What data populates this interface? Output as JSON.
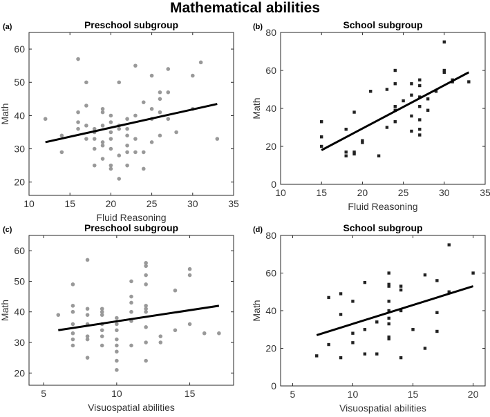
{
  "figure": {
    "title": "Mathematical abilities"
  },
  "chart_data": [
    {
      "type": "scatter",
      "panel_label": "(a)",
      "title": "Preschool subgroup",
      "xlabel": "Fluid Reasoning",
      "ylabel": "Math",
      "xlim": [
        10,
        35
      ],
      "ylim": [
        16,
        65
      ],
      "xticks": [
        10,
        15,
        20,
        25,
        30,
        35
      ],
      "yticks": [
        20,
        30,
        40,
        50,
        60
      ],
      "point_color": "#999999",
      "marker": "circle",
      "points": [
        [
          12,
          39
        ],
        [
          14,
          34
        ],
        [
          14,
          29
        ],
        [
          16,
          57
        ],
        [
          16,
          41
        ],
        [
          16,
          38
        ],
        [
          16,
          36
        ],
        [
          17,
          50
        ],
        [
          17,
          43
        ],
        [
          17,
          37
        ],
        [
          17,
          33
        ],
        [
          18,
          35
        ],
        [
          18,
          33
        ],
        [
          18,
          30
        ],
        [
          18,
          25
        ],
        [
          18,
          36
        ],
        [
          19,
          42
        ],
        [
          19,
          41
        ],
        [
          19,
          37
        ],
        [
          19,
          32
        ],
        [
          19,
          31
        ],
        [
          19,
          27
        ],
        [
          20,
          40
        ],
        [
          20,
          38
        ],
        [
          20,
          35
        ],
        [
          20,
          33
        ],
        [
          20,
          30
        ],
        [
          20,
          25
        ],
        [
          20,
          24
        ],
        [
          21,
          50
        ],
        [
          21,
          37
        ],
        [
          21,
          36
        ],
        [
          21,
          28
        ],
        [
          21,
          21
        ],
        [
          22,
          39
        ],
        [
          22,
          36
        ],
        [
          22,
          34
        ],
        [
          22,
          31
        ],
        [
          22,
          29
        ],
        [
          22,
          25
        ],
        [
          23,
          55
        ],
        [
          23,
          40
        ],
        [
          23,
          33
        ],
        [
          23,
          29
        ],
        [
          24,
          29
        ],
        [
          24,
          24
        ],
        [
          24,
          44
        ],
        [
          25,
          52
        ],
        [
          25,
          42
        ],
        [
          25,
          39
        ],
        [
          25,
          32
        ],
        [
          26,
          47
        ],
        [
          26,
          45
        ],
        [
          26,
          41
        ],
        [
          26,
          34
        ],
        [
          27,
          54
        ],
        [
          27,
          47
        ],
        [
          27,
          39
        ],
        [
          28,
          35
        ],
        [
          30,
          52
        ],
        [
          30,
          42
        ],
        [
          31,
          56
        ],
        [
          33,
          33
        ]
      ],
      "regression": {
        "x": [
          12,
          33
        ],
        "y": [
          32,
          43.5
        ]
      }
    },
    {
      "type": "scatter",
      "panel_label": "(b)",
      "title": "School subgroup",
      "xlabel": "Fluid Reasoning",
      "ylabel": "Math",
      "xlim": [
        10,
        35
      ],
      "ylim": [
        0,
        80
      ],
      "xticks": [
        10,
        15,
        20,
        25,
        30,
        35
      ],
      "yticks": [
        0,
        20,
        40,
        60,
        80
      ],
      "point_color": "#222222",
      "marker": "square",
      "points": [
        [
          15,
          33
        ],
        [
          15,
          25
        ],
        [
          15,
          20
        ],
        [
          18,
          29
        ],
        [
          18,
          17
        ],
        [
          18,
          15
        ],
        [
          19,
          38
        ],
        [
          19,
          17
        ],
        [
          19,
          16
        ],
        [
          20,
          23
        ],
        [
          20,
          22
        ],
        [
          21,
          49
        ],
        [
          22,
          15
        ],
        [
          23,
          50
        ],
        [
          23,
          30
        ],
        [
          24,
          60
        ],
        [
          24,
          53
        ],
        [
          24,
          41
        ],
        [
          24,
          39
        ],
        [
          24,
          33
        ],
        [
          25,
          44
        ],
        [
          26,
          53
        ],
        [
          26,
          47
        ],
        [
          26,
          36
        ],
        [
          26,
          28
        ],
        [
          27,
          55
        ],
        [
          27,
          52
        ],
        [
          27,
          46
        ],
        [
          27,
          41
        ],
        [
          27,
          34
        ],
        [
          27,
          29
        ],
        [
          27,
          26
        ],
        [
          28,
          45
        ],
        [
          28,
          39
        ],
        [
          29,
          49
        ],
        [
          30,
          75
        ],
        [
          30,
          60
        ],
        [
          30,
          59
        ],
        [
          31,
          55
        ],
        [
          31,
          54
        ],
        [
          33,
          54
        ]
      ],
      "regression": {
        "x": [
          15,
          33
        ],
        "y": [
          18,
          59
        ]
      }
    },
    {
      "type": "scatter",
      "panel_label": "(c)",
      "title": "Preschool subgroup",
      "xlabel": "Visuospatial abilities",
      "ylabel": "Math",
      "xlim": [
        4,
        18
      ],
      "ylim": [
        16,
        65
      ],
      "xticks": [
        5,
        10,
        15
      ],
      "yticks": [
        20,
        30,
        40,
        50,
        60
      ],
      "point_color": "#999999",
      "marker": "circle",
      "points": [
        [
          6,
          39
        ],
        [
          7,
          49
        ],
        [
          7,
          42
        ],
        [
          7,
          40
        ],
        [
          7,
          36
        ],
        [
          7,
          33
        ],
        [
          7,
          31
        ],
        [
          7,
          29
        ],
        [
          8,
          57
        ],
        [
          8,
          41
        ],
        [
          8,
          39
        ],
        [
          8,
          36
        ],
        [
          8,
          32
        ],
        [
          8,
          31
        ],
        [
          8,
          25
        ],
        [
          9,
          41
        ],
        [
          9,
          39
        ],
        [
          9,
          36
        ],
        [
          9,
          34
        ],
        [
          9,
          32
        ],
        [
          9,
          29
        ],
        [
          9,
          40
        ],
        [
          10,
          38
        ],
        [
          10,
          36
        ],
        [
          10,
          34
        ],
        [
          10,
          31
        ],
        [
          10,
          29
        ],
        [
          10,
          27
        ],
        [
          10,
          24
        ],
        [
          10,
          21
        ],
        [
          11,
          50
        ],
        [
          11,
          45
        ],
        [
          11,
          43
        ],
        [
          11,
          40
        ],
        [
          11,
          37
        ],
        [
          11,
          29
        ],
        [
          12,
          56
        ],
        [
          12,
          55
        ],
        [
          12,
          52
        ],
        [
          12,
          49
        ],
        [
          12,
          42
        ],
        [
          12,
          41
        ],
        [
          12,
          40
        ],
        [
          12,
          35
        ],
        [
          12,
          30
        ],
        [
          12,
          24
        ],
        [
          13,
          32
        ],
        [
          13,
          30
        ],
        [
          14,
          47
        ],
        [
          14,
          34
        ],
        [
          15,
          54
        ],
        [
          15,
          52
        ],
        [
          15,
          36
        ],
        [
          16,
          33
        ],
        [
          17,
          33
        ]
      ],
      "regression": {
        "x": [
          6,
          17
        ],
        "y": [
          34,
          42
        ]
      }
    },
    {
      "type": "scatter",
      "panel_label": "(d)",
      "title": "School subgroup",
      "xlabel": "Visuospatial abilities",
      "ylabel": "Math",
      "xlim": [
        4,
        21
      ],
      "ylim": [
        0,
        80
      ],
      "xticks": [
        5,
        10,
        15,
        20
      ],
      "yticks": [
        0,
        20,
        40,
        60,
        80
      ],
      "point_color": "#222222",
      "marker": "square",
      "points": [
        [
          7,
          16
        ],
        [
          8,
          47
        ],
        [
          8,
          22
        ],
        [
          9,
          49
        ],
        [
          9,
          38
        ],
        [
          9,
          15
        ],
        [
          10,
          45
        ],
        [
          10,
          28
        ],
        [
          10,
          23
        ],
        [
          11,
          55
        ],
        [
          11,
          30
        ],
        [
          11,
          17
        ],
        [
          12,
          34
        ],
        [
          12,
          17
        ],
        [
          13,
          60
        ],
        [
          13,
          54
        ],
        [
          13,
          53
        ],
        [
          13,
          45
        ],
        [
          13,
          36
        ],
        [
          13,
          33
        ],
        [
          13,
          26
        ],
        [
          13,
          25
        ],
        [
          13,
          40
        ],
        [
          14,
          53
        ],
        [
          14,
          51
        ],
        [
          14,
          40
        ],
        [
          14,
          15
        ],
        [
          15,
          30
        ],
        [
          16,
          59
        ],
        [
          16,
          20
        ],
        [
          17,
          56
        ],
        [
          17,
          39
        ],
        [
          17,
          29
        ],
        [
          18,
          75
        ],
        [
          18,
          50
        ],
        [
          20,
          60
        ]
      ],
      "regression": {
        "x": [
          7,
          20
        ],
        "y": [
          27,
          53
        ]
      }
    }
  ]
}
